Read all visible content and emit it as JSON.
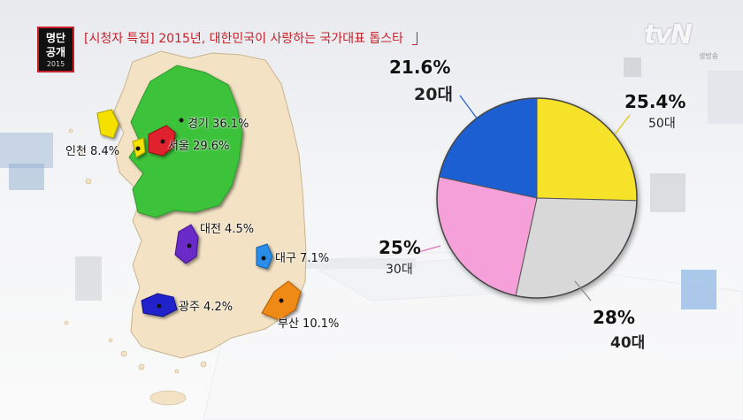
{
  "header": {
    "program_title": "[시청자 특집] 2015년, 대한민국이 사랑하는 국가대표 톱스타",
    "logo_line1": "명단",
    "logo_line2": "공개",
    "logo_year": "2015",
    "channel": "tvN",
    "channel_sub": "생방송"
  },
  "colors": {
    "gyeonggi": "#3ec23a",
    "seoul": "#e0222e",
    "incheon": "#f4e100",
    "daejeon": "#6a2bc7",
    "daegu": "#2a8ee8",
    "busan": "#f08a15",
    "gwangju": "#2222cc",
    "land": "#f3e2c4",
    "pie_20s": "#1f5fd2",
    "pie_50s": "#f7e22c",
    "pie_40s": "#d8d8d8",
    "pie_30s": "#f5a0d8"
  },
  "chart_data": [
    {
      "type": "map",
      "regions": [
        {
          "name": "경기",
          "value": 36.1,
          "label": "경기 36.1%"
        },
        {
          "name": "서울",
          "value": 29.6,
          "label": "서울 29.6%"
        },
        {
          "name": "인천",
          "value": 8.4,
          "label": "인천 8.4%"
        },
        {
          "name": "대전",
          "value": 4.5,
          "label": "대전 4.5%"
        },
        {
          "name": "대구",
          "value": 7.1,
          "label": "대구 7.1%"
        },
        {
          "name": "광주",
          "value": 4.2,
          "label": "광주 4.2%"
        },
        {
          "name": "부산",
          "value": 10.1,
          "label": "부산 10.1%"
        }
      ]
    },
    {
      "type": "pie",
      "slices": [
        {
          "name": "20대",
          "value": 21.6,
          "pct_label": "21.6%",
          "color": "#1f5fd2"
        },
        {
          "name": "50대",
          "value": 25.4,
          "pct_label": "25.4%",
          "color": "#f7e22c"
        },
        {
          "name": "40대",
          "value": 28,
          "pct_label": "28%",
          "color": "#d8d8d8"
        },
        {
          "name": "30대",
          "value": 25,
          "pct_label": "25%",
          "color": "#f5a0d8"
        }
      ]
    }
  ]
}
